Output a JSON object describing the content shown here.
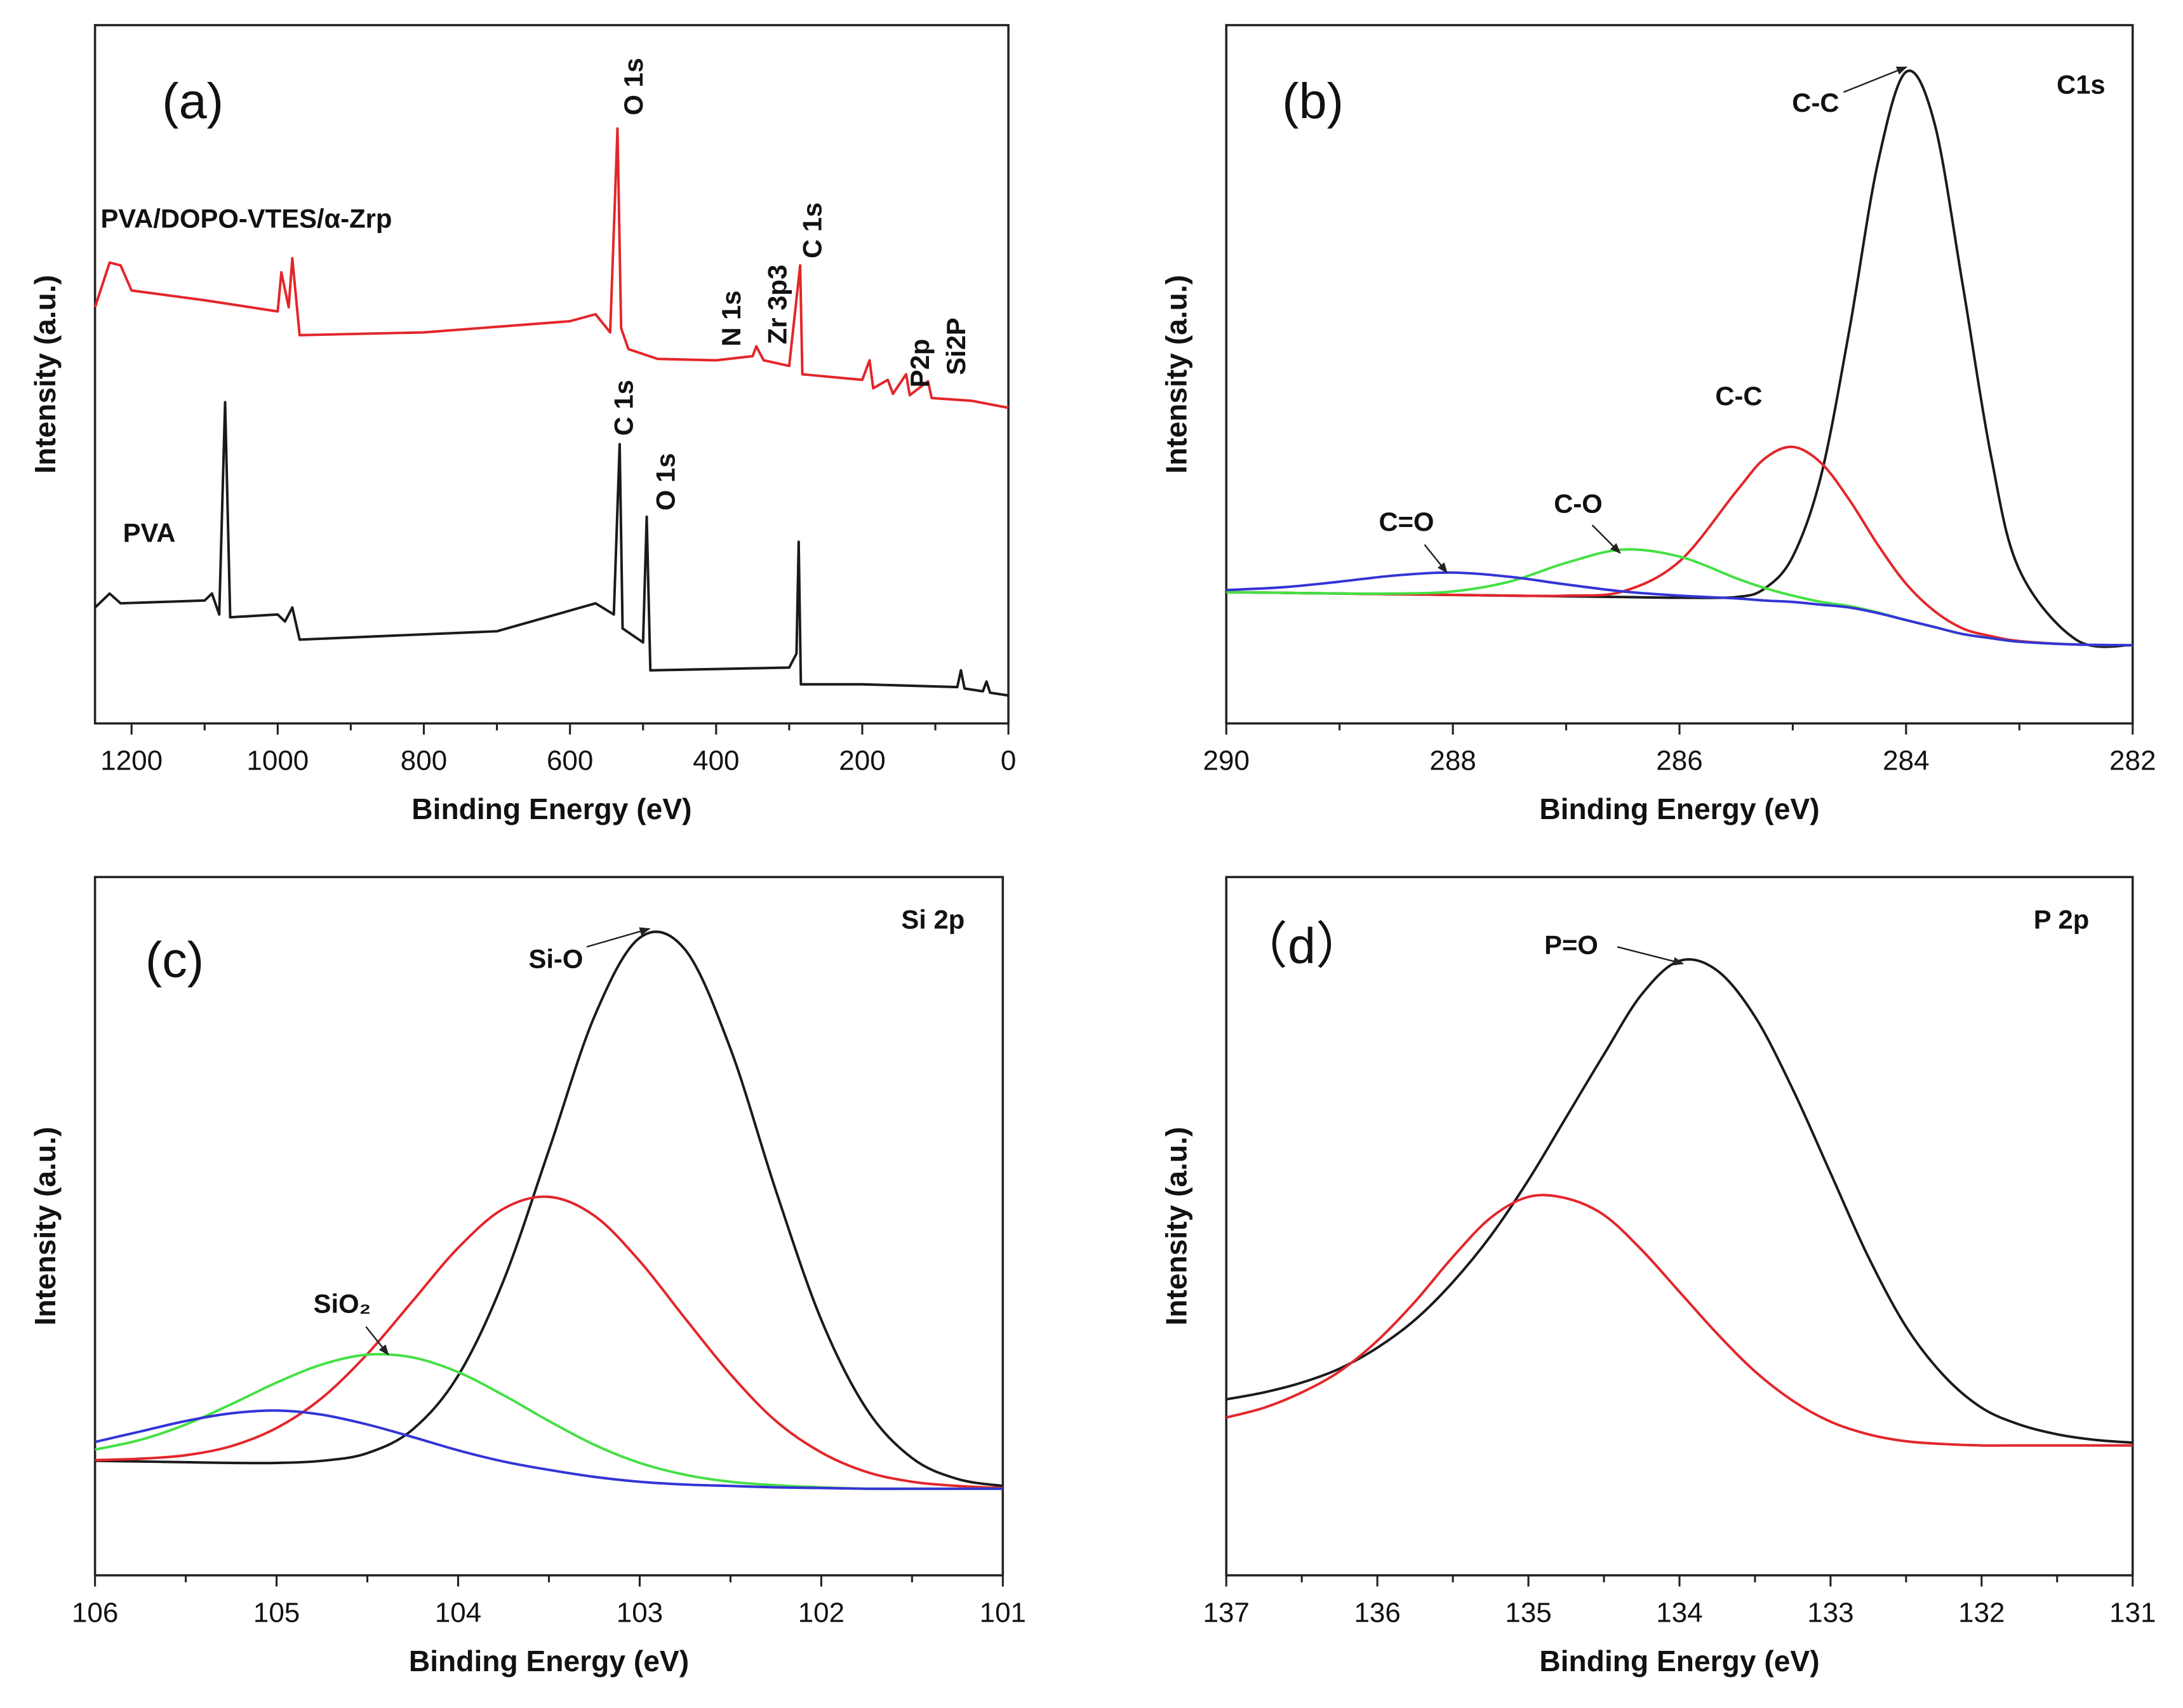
{
  "chart_data": [
    {
      "type": "line",
      "annotations": [
        "(a)",
        "O 1s",
        "PVA/DOPO-VTES/α-Zrp",
        "N 1s",
        "Zr 3p3",
        "C 1s",
        "P2p",
        "Si2P",
        "C 1s",
        "O 1s",
        "PVA"
      ],
      "xlabel": "Binding Energy (eV)",
      "ylabel": "Intensity (a.u.)",
      "xlim": [
        1250,
        0
      ],
      "xticks": [
        1200,
        1000,
        800,
        600,
        400,
        200,
        0
      ],
      "ylim": [
        0,
        100
      ],
      "series": [
        {
          "color": "#e3262a",
          "x": [
            1250,
            1230,
            1215,
            1200,
            1100,
            1000,
            995,
            985,
            980,
            970,
            800,
            600,
            565,
            545,
            535,
            530,
            520,
            480,
            400,
            350,
            345,
            335,
            300,
            285,
            282,
            200,
            190,
            185,
            165,
            158,
            140,
            135,
            110,
            105,
            50,
            0
          ],
          "values": [
            59.6,
            66,
            65.6,
            62,
            60.6,
            59,
            64.6,
            59.6,
            66.6,
            55.6,
            56,
            57.6,
            58.6,
            56,
            85.2,
            56.6,
            53.6,
            52.2,
            52,
            52.6,
            54,
            52,
            51.2,
            65.6,
            50,
            49.2,
            52,
            48,
            49.2,
            47.2,
            50,
            47,
            49,
            46.6,
            46.2,
            45.2
          ]
        },
        {
          "color": "#1a1a1a",
          "x": [
            1250,
            1230,
            1215,
            1100,
            1090,
            1080,
            1072,
            1065,
            1000,
            990,
            980,
            970,
            700,
            565,
            540,
            532,
            528,
            500,
            495,
            490,
            300,
            290,
            287,
            284,
            200,
            70,
            65,
            60,
            35,
            30,
            25,
            0
          ],
          "values": [
            16.6,
            18.6,
            17.2,
            17.6,
            18.6,
            15.6,
            46,
            15.2,
            15.6,
            14.6,
            16.6,
            12,
            13.2,
            17.2,
            15.6,
            40,
            13.6,
            11.6,
            29.6,
            7.6,
            8,
            10,
            26,
            5.6,
            5.6,
            5.2,
            7.6,
            5,
            4.6,
            6,
            4.4,
            4
          ]
        }
      ]
    },
    {
      "type": "line",
      "smooth": true,
      "annotations": [
        "(b)",
        "C1s",
        "C-C",
        "C-C",
        "C-O",
        "C=O"
      ],
      "xlabel": "Binding Energy (eV)",
      "ylabel": "Intensity (a.u.)",
      "xlim": [
        290,
        282
      ],
      "xticks": [
        290,
        288,
        286,
        284,
        282
      ],
      "ylim": [
        0,
        100
      ],
      "series": [
        {
          "color": "#1a1a1a",
          "x": [
            290,
            289.5,
            289,
            288.5,
            288,
            287.5,
            287,
            286.5,
            286,
            285.5,
            285.25,
            285,
            284.75,
            284.5,
            284.25,
            284,
            283.75,
            283.5,
            283.25,
            283,
            282.5,
            282
          ],
          "values": [
            18.8,
            18.7,
            18.6,
            18.5,
            18.4,
            18.3,
            18.2,
            18.1,
            18.0,
            18.1,
            19.3,
            23.9,
            35.5,
            56.4,
            80.2,
            93.3,
            86.0,
            62.8,
            38.3,
            22.0,
            12.0,
            11.2
          ]
        },
        {
          "color": "#e3262a",
          "x": [
            290,
            289.5,
            289,
            288.5,
            288,
            287.5,
            287,
            286.5,
            286,
            285.5,
            285.25,
            285,
            284.75,
            284.5,
            284.25,
            284,
            283.75,
            283.5,
            283.25,
            283,
            282.5,
            282
          ],
          "values": [
            18.8,
            18.7,
            18.6,
            18.5,
            18.4,
            18.3,
            18.3,
            18.9,
            23.2,
            33.2,
            37.9,
            39.6,
            37.3,
            32.0,
            25.6,
            20.0,
            16.1,
            13.6,
            12.5,
            11.8,
            11.3,
            11.2
          ]
        },
        {
          "color": "#44e044",
          "x": [
            290,
            289.5,
            289,
            288.5,
            288,
            287.5,
            287,
            286.5,
            286,
            285.5,
            285.25,
            285,
            284.75,
            284.5,
            284.25,
            284,
            283.75,
            283.5,
            283.25,
            283,
            282.5,
            282
          ],
          "values": [
            18.8,
            18.7,
            18.6,
            18.6,
            18.9,
            20.3,
            23.0,
            24.9,
            23.9,
            20.8,
            19.4,
            18.3,
            17.4,
            16.8,
            15.9,
            14.8,
            13.8,
            12.8,
            12.2,
            11.7,
            11.3,
            11.2
          ]
        },
        {
          "color": "#3434d6",
          "x": [
            290,
            289.5,
            289,
            288.5,
            288,
            287.5,
            287,
            286.5,
            286,
            285.5,
            285.25,
            285,
            284.75,
            284.5,
            284.25,
            284,
            283.75,
            283.5,
            283.25,
            283,
            282.5,
            282
          ],
          "values": [
            19.1,
            19.5,
            20.3,
            21.2,
            21.6,
            21.0,
            19.9,
            18.9,
            18.3,
            17.9,
            17.6,
            17.4,
            17.0,
            16.6,
            15.8,
            14.8,
            13.8,
            12.8,
            12.2,
            11.7,
            11.3,
            11.2
          ]
        }
      ]
    },
    {
      "type": "line",
      "smooth": true,
      "annotations": [
        "(c)",
        "Si 2p",
        "Si-O",
        "SiO₂"
      ],
      "xlabel": "Binding Energy (eV)",
      "ylabel": "Intensity (a.u.)",
      "xlim": [
        106,
        101
      ],
      "xticks": [
        106,
        105,
        104,
        103,
        102,
        101
      ],
      "ylim": [
        0,
        100
      ],
      "series": [
        {
          "color": "#1a1a1a",
          "x": [
            106,
            105.75,
            105.5,
            105.25,
            105,
            104.75,
            104.5,
            104.25,
            104,
            103.75,
            103.5,
            103.25,
            103,
            102.75,
            102.5,
            102.25,
            102,
            101.75,
            101.5,
            101.25,
            101
          ],
          "values": [
            16.4,
            16.3,
            16.2,
            16.1,
            16.1,
            16.4,
            17.5,
            20.9,
            28.6,
            42.2,
            60.9,
            80.0,
            91.3,
            89.6,
            75.4,
            55.1,
            36.6,
            23.8,
            16.8,
            13.8,
            12.8
          ]
        },
        {
          "color": "#e3262a",
          "x": [
            106,
            105.75,
            105.5,
            105.25,
            105,
            104.75,
            104.5,
            104.25,
            104,
            103.75,
            103.5,
            103.25,
            103,
            102.75,
            102.5,
            102.25,
            102,
            101.75,
            101.5,
            101.25,
            101
          ],
          "values": [
            16.5,
            16.7,
            17.2,
            18.5,
            21.1,
            25.4,
            31.7,
            39.3,
            46.9,
            52.5,
            54.2,
            51.5,
            45.0,
            36.8,
            28.8,
            22.1,
            17.6,
            14.8,
            13.4,
            12.8,
            12.5
          ]
        },
        {
          "color": "#44e044",
          "x": [
            106,
            105.75,
            105.5,
            105.25,
            105,
            104.75,
            104.5,
            104.25,
            104,
            103.75,
            103.5,
            103.25,
            103,
            102.75,
            102.5,
            102.25,
            102,
            101.75,
            101.5,
            101.25,
            101
          ],
          "values": [
            18.0,
            19.4,
            21.6,
            24.5,
            27.6,
            30.2,
            31.6,
            31.2,
            29.1,
            25.8,
            22.1,
            18.7,
            16.1,
            14.4,
            13.4,
            12.9,
            12.6,
            12.4,
            12.4,
            12.4,
            12.4
          ]
        },
        {
          "color": "#3434d6",
          "x": [
            106,
            105.75,
            105.5,
            105.25,
            105,
            104.75,
            104.5,
            104.25,
            104,
            103.75,
            103.5,
            103.25,
            103,
            102.75,
            102.5,
            102.25,
            102,
            101.75,
            101.5,
            101.25,
            101
          ],
          "values": [
            19.1,
            20.6,
            22.1,
            23.2,
            23.6,
            23.0,
            21.6,
            19.8,
            17.9,
            16.3,
            15.1,
            14.1,
            13.4,
            13.0,
            12.8,
            12.6,
            12.5,
            12.4,
            12.4,
            12.4,
            12.4
          ]
        }
      ]
    },
    {
      "type": "line",
      "smooth": true,
      "annotations": [
        "（d）",
        "P 2p",
        "P=O"
      ],
      "xlabel": "Binding Energy (eV)",
      "ylabel": "Intensity (a.u.)",
      "xlim": [
        137,
        131
      ],
      "xticks": [
        137,
        136,
        135,
        134,
        133,
        132,
        131
      ],
      "ylim": [
        0,
        100
      ],
      "series": [
        {
          "color": "#1a1a1a",
          "x": [
            137,
            136.75,
            136.5,
            136.25,
            136,
            135.75,
            135.5,
            135.25,
            135,
            134.75,
            134.5,
            134.25,
            134,
            133.75,
            133.5,
            133.25,
            133,
            132.75,
            132.5,
            132.25,
            132,
            131.75,
            131.5,
            131.25,
            131
          ],
          "values": [
            25.2,
            26.2,
            27.6,
            29.6,
            32.6,
            36.6,
            42,
            48.6,
            56.6,
            65.6,
            74.6,
            83.2,
            88,
            86.6,
            80,
            69.6,
            57.6,
            45.6,
            35.6,
            28.6,
            24,
            21.6,
            20.2,
            19.4,
            19
          ]
        },
        {
          "color": "#e3262a",
          "x": [
            137,
            136.75,
            136.5,
            136.25,
            136,
            135.75,
            135.5,
            135.25,
            135,
            134.75,
            134.5,
            134.25,
            134,
            133.75,
            133.5,
            133.25,
            133,
            132.75,
            132.5,
            132.25,
            132,
            131.75,
            131.5,
            131.25,
            131
          ],
          "values": [
            22.6,
            24,
            26.2,
            29.2,
            33.6,
            39.2,
            45.6,
            51.2,
            54.2,
            54,
            51.6,
            46.6,
            40.6,
            34.6,
            29.2,
            25,
            22,
            20.2,
            19.2,
            18.8,
            18.6,
            18.6,
            18.6,
            18.6,
            18.6
          ]
        }
      ]
    }
  ]
}
